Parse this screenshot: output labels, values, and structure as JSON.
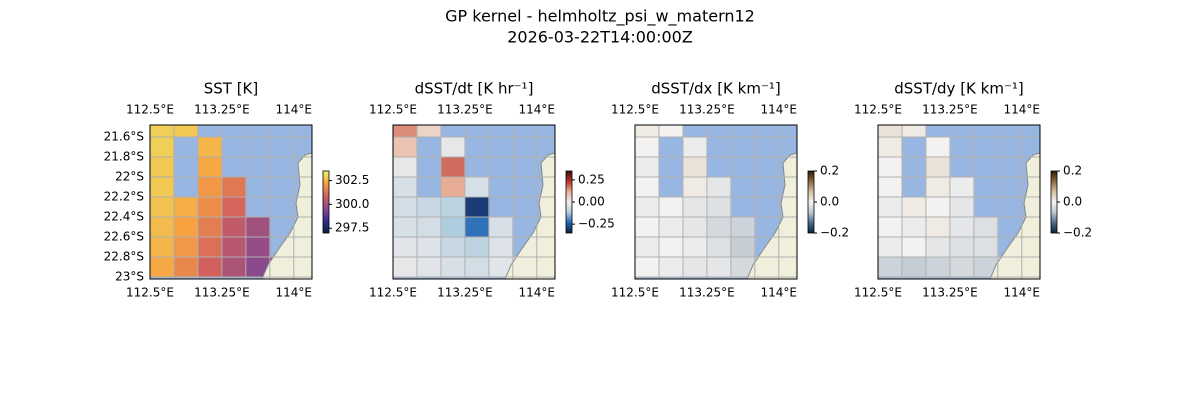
{
  "title": "GP kernel - helmholtz_psi_w_matern12",
  "subtitle": "2026-03-22T14:00:00Z",
  "chart_data": [
    {
      "type": "heatmap",
      "title": "SST [K]",
      "ocean_color": "#97b6e1",
      "land_color": "#efefdb",
      "colormap": [
        "#04233f",
        "#3a2d8f",
        "#8b4a8c",
        "#d2605e",
        "#f7a141",
        "#e9f76b"
      ],
      "xlim": [
        112.5,
        114.19
      ],
      "ylim": [
        -23.02,
        -21.48
      ],
      "xticks": [
        {
          "value": 112.5,
          "label": "112.5°E"
        },
        {
          "value": 113.25,
          "label": "113.25°E"
        },
        {
          "value": 114,
          "label": "114°E"
        }
      ],
      "yticks": [
        {
          "value": -21.6,
          "label": "21.6°S"
        },
        {
          "value": -21.8,
          "label": "21.8°S"
        },
        {
          "value": -22,
          "label": "22°S"
        },
        {
          "value": -22.2,
          "label": "22.2°S"
        },
        {
          "value": -22.4,
          "label": "22.4°S"
        },
        {
          "value": -22.6,
          "label": "22.6°S"
        },
        {
          "value": -22.8,
          "label": "22.8°S"
        },
        {
          "value": -23,
          "label": "23°S"
        }
      ],
      "xgrid": [
        112.5,
        112.75,
        113,
        113.25,
        113.5,
        113.75,
        114
      ],
      "ygrid": [
        -21.6,
        -21.8,
        -22,
        -22.2,
        -22.4,
        -22.6,
        -22.8,
        -23
      ],
      "clim": [
        297,
        303.5
      ],
      "cticks": [
        297.5,
        {
          "value": 300,
          "label": "300.0"
        },
        302.5
      ],
      "x": [
        112.625,
        112.875,
        113.125,
        113.375,
        113.625,
        113.875
      ],
      "y": [
        -21.5,
        -21.7,
        -21.9,
        -22.1,
        -22.3,
        -22.5,
        -22.7,
        -22.9
      ],
      "values": [
        [
          302.9,
          302.8,
          null,
          null,
          null,
          null
        ],
        [
          302.9,
          null,
          302.5,
          null,
          null,
          null
        ],
        [
          302.8,
          null,
          302.3,
          null,
          null,
          null
        ],
        [
          302.8,
          null,
          302.0,
          301.4,
          null,
          null
        ],
        [
          302.7,
          302.4,
          301.8,
          301.0,
          null,
          null
        ],
        [
          302.6,
          302.2,
          301.5,
          300.6,
          300.0,
          null
        ],
        [
          302.5,
          302.0,
          301.2,
          300.4,
          299.8,
          null
        ],
        [
          302.3,
          301.7,
          300.9,
          300.2,
          299.6,
          299.4
        ]
      ]
    },
    {
      "type": "heatmap",
      "title": "dSST/dt [K hr⁻¹]",
      "ocean_color": "#97b6e1",
      "land_color": "#efefdb",
      "colormap": [
        "#181c43",
        "#1e66b5",
        "#b4cfe0",
        "#f1ecec",
        "#e8b097",
        "#b8342c",
        "#3c0912"
      ],
      "xlim": [
        112.5,
        114.19
      ],
      "ylim": [
        -23.02,
        -21.48
      ],
      "xticks": [
        {
          "value": 112.5,
          "label": "112.5°E"
        },
        {
          "value": 113.25,
          "label": "113.25°E"
        },
        {
          "value": 114,
          "label": "114°E"
        }
      ],
      "xgrid": [
        112.5,
        112.75,
        113,
        113.25,
        113.5,
        113.75,
        114
      ],
      "ygrid": [
        -21.6,
        -21.8,
        -22,
        -22.2,
        -22.4,
        -22.6,
        -22.8,
        -23
      ],
      "clim": [
        -0.35,
        0.35
      ],
      "cticks": [
        {
          "value": -0.25,
          "label": "−0.25"
        },
        {
          "value": 0,
          "label": "0.00"
        },
        0.25
      ],
      "x": [
        112.625,
        112.875,
        113.125,
        113.375,
        113.625,
        113.875
      ],
      "y": [
        -21.5,
        -21.7,
        -21.9,
        -22.1,
        -22.3,
        -22.5,
        -22.7,
        -22.9
      ],
      "values": [
        [
          0.15,
          0.05,
          null,
          null,
          null,
          null
        ],
        [
          0.08,
          null,
          -0.02,
          null,
          null,
          null
        ],
        [
          -0.02,
          null,
          0.18,
          null,
          null,
          null
        ],
        [
          -0.05,
          null,
          0.12,
          -0.05,
          null,
          null
        ],
        [
          -0.06,
          -0.08,
          -0.1,
          -0.3,
          null,
          null
        ],
        [
          -0.05,
          -0.06,
          -0.12,
          -0.22,
          -0.05,
          null
        ],
        [
          -0.03,
          -0.04,
          -0.08,
          -0.1,
          -0.04,
          null
        ],
        [
          -0.02,
          -0.03,
          -0.05,
          -0.06,
          -0.03,
          -0.02
        ]
      ]
    },
    {
      "type": "heatmap",
      "title": "dSST/dx [K km⁻¹]",
      "ocean_color": "#97b6e1",
      "land_color": "#efefdb",
      "colormap": [
        "#08243b",
        "#4a6d8a",
        "#c0c9d2",
        "#f4f2f1",
        "#d7c0a3",
        "#8c6a3c",
        "#2d1a07"
      ],
      "xlim": [
        112.5,
        114.19
      ],
      "ylim": [
        -23.02,
        -21.48
      ],
      "xticks": [
        {
          "value": 112.5,
          "label": "112.5°E"
        },
        {
          "value": 113.25,
          "label": "113.25°E"
        },
        {
          "value": 114,
          "label": "114°E"
        }
      ],
      "xgrid": [
        112.5,
        112.75,
        113,
        113.25,
        113.5,
        113.75,
        114
      ],
      "ygrid": [
        -21.6,
        -21.8,
        -22,
        -22.2,
        -22.4,
        -22.6,
        -22.8,
        -23
      ],
      "clim": [
        -0.2,
        0.2
      ],
      "cticks": [
        {
          "value": -0.2,
          "label": "−0.2"
        },
        {
          "value": 0,
          "label": "0.0"
        },
        0.2
      ],
      "x": [
        112.625,
        112.875,
        113.125,
        113.375,
        113.625,
        113.875
      ],
      "y": [
        -21.5,
        -21.7,
        -21.9,
        -22.1,
        -22.3,
        -22.5,
        -22.7,
        -22.9
      ],
      "values": [
        [
          0.01,
          0.0,
          null,
          null,
          null,
          null
        ],
        [
          0.0,
          null,
          -0.01,
          null,
          null,
          null
        ],
        [
          -0.01,
          null,
          0.02,
          null,
          null,
          null
        ],
        [
          0.0,
          null,
          0.01,
          -0.02,
          null,
          null
        ],
        [
          -0.01,
          0.0,
          -0.02,
          -0.03,
          null,
          null
        ],
        [
          0.0,
          -0.01,
          -0.02,
          -0.04,
          -0.05,
          null
        ],
        [
          -0.01,
          0.0,
          -0.01,
          -0.03,
          -0.06,
          null
        ],
        [
          0.0,
          -0.01,
          -0.02,
          -0.02,
          -0.04,
          -0.05
        ]
      ]
    },
    {
      "type": "heatmap",
      "title": "dSST/dy [K km⁻¹]",
      "ocean_color": "#97b6e1",
      "land_color": "#efefdb",
      "colormap": [
        "#08243b",
        "#4a6d8a",
        "#c0c9d2",
        "#f4f2f1",
        "#d7c0a3",
        "#8c6a3c",
        "#2d1a07"
      ],
      "xlim": [
        112.5,
        114.19
      ],
      "ylim": [
        -23.02,
        -21.48
      ],
      "xticks": [
        {
          "value": 112.5,
          "label": "112.5°E"
        },
        {
          "value": 113.25,
          "label": "113.25°E"
        },
        {
          "value": 114,
          "label": "114°E"
        }
      ],
      "xgrid": [
        112.5,
        112.75,
        113,
        113.25,
        113.5,
        113.75,
        114
      ],
      "ygrid": [
        -21.6,
        -21.8,
        -22,
        -22.2,
        -22.4,
        -22.6,
        -22.8,
        -23
      ],
      "clim": [
        -0.2,
        0.2
      ],
      "cticks": [
        {
          "value": -0.2,
          "label": "−0.2"
        },
        {
          "value": 0,
          "label": "0.0"
        },
        0.2
      ],
      "x": [
        112.625,
        112.875,
        113.125,
        113.375,
        113.625,
        113.875
      ],
      "y": [
        -21.5,
        -21.7,
        -21.9,
        -22.1,
        -22.3,
        -22.5,
        -22.7,
        -22.9
      ],
      "values": [
        [
          0.02,
          0.01,
          null,
          null,
          null,
          null
        ],
        [
          0.01,
          null,
          0.0,
          null,
          null,
          null
        ],
        [
          0.0,
          null,
          0.02,
          null,
          null,
          null
        ],
        [
          0.0,
          null,
          0.01,
          -0.01,
          null,
          null
        ],
        [
          -0.01,
          0.01,
          0.0,
          -0.02,
          null,
          null
        ],
        [
          0.0,
          -0.01,
          0.01,
          -0.02,
          -0.03,
          null
        ],
        [
          -0.01,
          0.0,
          -0.02,
          -0.03,
          -0.03,
          null
        ],
        [
          -0.05,
          -0.06,
          -0.05,
          -0.04,
          -0.05,
          -0.03
        ]
      ]
    }
  ]
}
